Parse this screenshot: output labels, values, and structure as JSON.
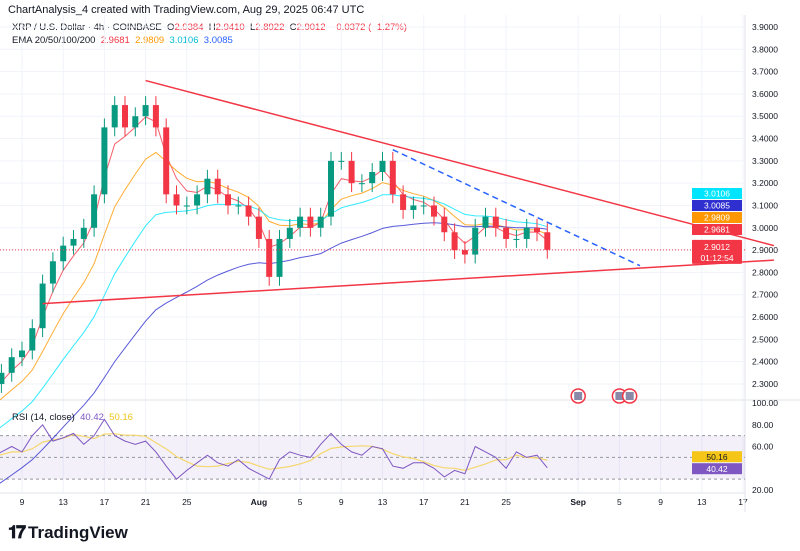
{
  "header": {
    "credit": "ChartAnalysis_4 created with TradingView.com, Aug 29, 2025 06:47 UTC",
    "symbol": "XRP / U.S. Dollar · 4h · COINBASE",
    "o_label": "O",
    "o": "2.9384",
    "h_label": "H",
    "h": "2.9410",
    "l_label": "L",
    "l": "2.8922",
    "c_label": "C",
    "c": "2.9012",
    "change": "−0.0372 (−1.27%)",
    "ema_label": "EMA 20/50/100/200",
    "ema20": "2.9681",
    "ema50": "2.9809",
    "ema100": "3.0106",
    "ema200": "3.0085"
  },
  "rsi_header": {
    "label": "RSI (14, close)",
    "rsi": "40.42",
    "ma": "50.16"
  },
  "colors": {
    "up": "#089981",
    "down": "#f23645",
    "ema20": "#f23645",
    "ema50": "#ff9800",
    "ema100": "#00e5ff",
    "ema200": "#2f2fd0",
    "trend": "#f23645",
    "dashed": "#2962ff",
    "rsi": "#7e57c2",
    "rsi_ma": "#f5d76e"
  },
  "logo": "TradingView",
  "chart_data": {
    "type": "candlestick",
    "price_axis": {
      "range": [
        2.25,
        3.95
      ],
      "ticks": [
        "3.9000",
        "3.8000",
        "3.7000",
        "3.6000",
        "3.5000",
        "3.4000",
        "3.3000",
        "3.2000",
        "3.1000",
        "3.0000",
        "2.9000",
        "2.8000",
        "2.7000",
        "2.6000",
        "2.5000",
        "2.4000",
        "2.3000"
      ]
    },
    "time_axis": {
      "ticks": [
        [
          "2025-07-09",
          "9"
        ],
        [
          "2025-07-13",
          "13"
        ],
        [
          "2025-07-17",
          "17"
        ],
        [
          "2025-07-21",
          "21"
        ],
        [
          "2025-07-25",
          "25"
        ],
        [
          "2025-08-01",
          "Aug"
        ],
        [
          "2025-08-05",
          "5"
        ],
        [
          "2025-08-09",
          "9"
        ],
        [
          "2025-08-13",
          "13"
        ],
        [
          "2025-08-17",
          "17"
        ],
        [
          "2025-08-21",
          "21"
        ],
        [
          "2025-08-25",
          "25"
        ],
        [
          "2025-09-01",
          "Sep"
        ],
        [
          "2025-09-05",
          "5"
        ],
        [
          "2025-09-09",
          "9"
        ],
        [
          "2025-09-13",
          "13"
        ],
        [
          "2025-09-17",
          "17"
        ]
      ]
    },
    "start_date": "2025-07-06",
    "closes": [
      2.3,
      2.35,
      2.42,
      2.45,
      2.55,
      2.75,
      2.85,
      2.92,
      2.95,
      3.0,
      3.15,
      3.45,
      3.55,
      3.45,
      3.5,
      3.55,
      3.45,
      3.15,
      3.1,
      3.1,
      3.15,
      3.22,
      3.15,
      3.1,
      3.1,
      3.05,
      2.95,
      2.78,
      2.95,
      3.0,
      3.05,
      3.0,
      3.05,
      3.3,
      3.3,
      3.2,
      3.2,
      3.25,
      3.3,
      3.15,
      3.08,
      3.1,
      3.1,
      3.05,
      2.98,
      2.9,
      2.88,
      3.0,
      3.05,
      3.0,
      2.95,
      2.95,
      3.0,
      2.98,
      2.9012
    ],
    "ema_periods": [
      20,
      50,
      100,
      200
    ],
    "price_labels": [
      {
        "text": "3.0106",
        "color": "#00e5ff"
      },
      {
        "text": "3.0085",
        "color": "#2f2fd0"
      },
      {
        "text": "2.9809",
        "color": "#ff9800"
      },
      {
        "text": "2.9681",
        "color": "#f23645"
      }
    ],
    "last_price": {
      "value": 2.9012,
      "text": "2.9012",
      "countdown": "01:12:54"
    },
    "trendlines": [
      {
        "name": "upper-trendline",
        "from": [
          "2025-07-21",
          3.66
        ],
        "to": [
          "2025-09-20",
          2.92
        ],
        "style": "solid"
      },
      {
        "name": "lower-trendline",
        "from": [
          "2025-07-11",
          2.66
        ],
        "to": [
          "2025-09-20",
          2.855
        ],
        "style": "solid"
      },
      {
        "name": "dashed-resistance",
        "from": [
          "2025-08-14",
          3.35
        ],
        "to": [
          "2025-09-07",
          2.83
        ],
        "style": "dashed"
      }
    ],
    "events": [
      {
        "date": "2025-09-01",
        "icon": "us-flag-icon"
      },
      {
        "date": "2025-09-05",
        "icon": "us-flag-icon"
      },
      {
        "date": "2025-09-06",
        "icon": "us-flag-icon"
      }
    ],
    "rsi": {
      "axis_ticks": [
        "100.00",
        "80.00",
        "60.00",
        "20.00"
      ],
      "bands": [
        70,
        50,
        30
      ],
      "values": [
        50,
        55,
        60,
        55,
        70,
        80,
        65,
        68,
        72,
        62,
        70,
        85,
        70,
        65,
        62,
        65,
        55,
        42,
        30,
        38,
        45,
        52,
        45,
        42,
        48,
        40,
        35,
        30,
        48,
        55,
        52,
        50,
        62,
        72,
        62,
        55,
        52,
        60,
        58,
        42,
        40,
        45,
        45,
        40,
        32,
        38,
        35,
        60,
        55,
        50,
        40,
        55,
        50,
        52,
        40.42
      ]
    }
  }
}
